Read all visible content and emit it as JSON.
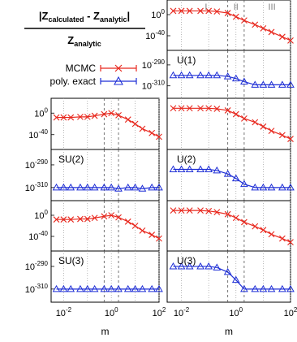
{
  "figure": {
    "formula": {
      "numerator": {
        "z1": "Z",
        "sub1": "calculated",
        "minus": " - ",
        "z2": "Z",
        "sub2": "analytic"
      },
      "denominator": {
        "z": "Z",
        "sub": "analytic"
      }
    },
    "xlabel": "m",
    "x_ticks": [
      "10",
      "10",
      "10",
      "10",
      "10"
    ],
    "x_tick_exps": [
      "-2",
      "-1",
      "0",
      "1",
      "2"
    ],
    "regions": [
      "I",
      "II",
      "III"
    ],
    "colors": {
      "mcmc": "#e8281e",
      "poly": "#1f2fd6",
      "grid": "#9a9a9a",
      "ink": "#000000",
      "region": "#808080"
    }
  },
  "chart_data": [
    {
      "type": "line",
      "panel": "U(1)",
      "label": "U(1)",
      "x_scale": "log",
      "xlim": [
        0.003,
        100
      ],
      "upper": {
        "y_scale": "log",
        "ylim_exp": [
          -60,
          20
        ],
        "y_ticks": [
          {
            "base": "10",
            "exp": "0"
          },
          {
            "base": "10",
            "exp": "-40"
          }
        ],
        "series": [
          {
            "name": "MCMC",
            "x": [
              0.005,
              0.01,
              0.02,
              0.05,
              0.1,
              0.2,
              0.5,
              1,
              2,
              5,
              10,
              20,
              50,
              100
            ],
            "y_exp": [
              7,
              7,
              7,
              7,
              7,
              6,
              3,
              -4,
              -11,
              -19,
              -26,
              -33,
              -42,
              -49
            ]
          }
        ]
      },
      "lower": {
        "y_scale": "log",
        "ylim_exp": [
          -318,
          -280
        ],
        "y_ticks": [
          {
            "base": "10",
            "exp": "-290"
          },
          {
            "base": "10",
            "exp": "-310"
          }
        ],
        "series": [
          {
            "name": "poly. exact",
            "x": [
              0.005,
              0.01,
              0.02,
              0.05,
              0.1,
              0.2,
              0.5,
              1,
              2,
              5,
              10,
              20,
              50,
              100
            ],
            "y_exp": [
              -300,
              -300,
              -300,
              -300,
              -300,
              -300,
              -301,
              -303,
              -306,
              -309,
              -309,
              -309,
              -309,
              -309
            ]
          }
        ]
      }
    },
    {
      "type": "line",
      "panel": "SU(2)",
      "label": "SU(2)",
      "x_scale": "log",
      "xlim": [
        0.003,
        100
      ],
      "upper": {
        "y_scale": "log",
        "ylim_exp": [
          -60,
          20
        ],
        "y_ticks": [
          {
            "base": "10",
            "exp": "0"
          },
          {
            "base": "10",
            "exp": "-40"
          }
        ],
        "series": [
          {
            "name": "MCMC",
            "x": [
              0.005,
              0.01,
              0.02,
              0.05,
              0.1,
              0.2,
              0.5,
              1,
              2,
              5,
              10,
              20,
              50,
              100
            ],
            "y_exp": [
              -8,
              -8,
              -8,
              -7,
              -7,
              -5,
              -2,
              0,
              -4,
              -12,
              -20,
              -29,
              -37,
              -44
            ]
          }
        ]
      },
      "lower": {
        "y_scale": "log",
        "ylim_exp": [
          -318,
          -280
        ],
        "y_ticks": [
          {
            "base": "10",
            "exp": "-290"
          },
          {
            "base": "10",
            "exp": "-310"
          }
        ],
        "series": [
          {
            "name": "poly. exact",
            "x": [
              0.005,
              0.01,
              0.02,
              0.05,
              0.1,
              0.2,
              0.5,
              1,
              2,
              5,
              10,
              20,
              50,
              100
            ],
            "y_exp": [
              -310,
              -310,
              -310,
              -310,
              -310,
              -310,
              -310,
              -310,
              -311,
              -310,
              -310,
              -311,
              -310,
              -310
            ]
          }
        ]
      }
    },
    {
      "type": "line",
      "panel": "U(2)",
      "label": "U(2)",
      "x_scale": "log",
      "xlim": [
        0.003,
        100
      ],
      "upper": {
        "y_scale": "log",
        "ylim_exp": [
          -60,
          20
        ],
        "y_ticks": [],
        "series": [
          {
            "name": "MCMC",
            "x": [
              0.005,
              0.01,
              0.02,
              0.05,
              0.1,
              0.2,
              0.5,
              1,
              2,
              5,
              10,
              20,
              50,
              100
            ],
            "y_exp": [
              9,
              9,
              9,
              9,
              9,
              8,
              5,
              -2,
              -10,
              -17,
              -25,
              -33,
              -41,
              -48
            ]
          }
        ]
      },
      "lower": {
        "y_scale": "log",
        "ylim_exp": [
          -318,
          -280
        ],
        "y_ticks": [],
        "series": [
          {
            "name": "poly. exact",
            "x": [
              0.005,
              0.01,
              0.02,
              0.05,
              0.1,
              0.2,
              0.5,
              1,
              2,
              5,
              10,
              20,
              50,
              100
            ],
            "y_exp": [
              -294,
              -294,
              -294,
              -294,
              -294,
              -295,
              -298,
              -302,
              -307,
              -310,
              -310,
              -310,
              -310,
              -310
            ]
          }
        ]
      }
    },
    {
      "type": "line",
      "panel": "SU(3)",
      "label": "SU(3)",
      "x_scale": "log",
      "xlim": [
        0.003,
        100
      ],
      "upper": {
        "y_scale": "log",
        "ylim_exp": [
          -60,
          20
        ],
        "y_ticks": [
          {
            "base": "10",
            "exp": "0"
          },
          {
            "base": "10",
            "exp": "-40"
          }
        ],
        "series": [
          {
            "name": "MCMC",
            "x": [
              0.005,
              0.01,
              0.02,
              0.05,
              0.1,
              0.2,
              0.5,
              1,
              2,
              5,
              10,
              20,
              50,
              100
            ],
            "y_exp": [
              -8,
              -8,
              -8,
              -7,
              -7,
              -5,
              -2,
              0,
              -4,
              -12,
              -20,
              -29,
              -37,
              -44
            ]
          }
        ]
      },
      "lower": {
        "y_scale": "log",
        "ylim_exp": [
          -318,
          -280
        ],
        "y_ticks": [
          {
            "base": "10",
            "exp": "-290"
          },
          {
            "base": "10",
            "exp": "-310"
          }
        ],
        "series": [
          {
            "name": "poly. exact",
            "x": [
              0.005,
              0.01,
              0.02,
              0.05,
              0.1,
              0.2,
              0.5,
              1,
              2,
              5,
              10,
              20,
              50,
              100
            ],
            "y_exp": [
              -310,
              -310,
              -310,
              -310,
              -310,
              -310,
              -310,
              -310,
              -310,
              -310,
              -310,
              -310,
              -310,
              -310
            ]
          }
        ]
      }
    },
    {
      "type": "line",
      "panel": "U(3)",
      "label": "U(3)",
      "x_scale": "log",
      "xlim": [
        0.003,
        100
      ],
      "upper": {
        "y_scale": "log",
        "ylim_exp": [
          -60,
          20
        ],
        "y_ticks": [],
        "series": [
          {
            "name": "MCMC",
            "x": [
              0.005,
              0.01,
              0.02,
              0.05,
              0.1,
              0.2,
              0.5,
              1,
              2,
              5,
              10,
              20,
              50,
              100
            ],
            "y_exp": [
              9,
              9,
              9,
              9,
              8,
              6,
              2,
              -5,
              -13,
              -21,
              -28,
              -36,
              -44,
              -51
            ]
          }
        ]
      },
      "lower": {
        "y_scale": "log",
        "ylim_exp": [
          -318,
          -280
        ],
        "y_ticks": [],
        "series": [
          {
            "name": "poly. exact",
            "x": [
              0.005,
              0.01,
              0.02,
              0.05,
              0.1,
              0.2,
              0.5,
              1,
              2,
              5,
              10,
              20,
              50,
              100
            ],
            "y_exp": [
              -290,
              -290,
              -290,
              -290,
              -290,
              -291,
              -295,
              -302,
              -310,
              -310,
              -310,
              -310,
              -310,
              -310
            ]
          }
        ]
      }
    }
  ],
  "legend": [
    {
      "label": "MCMC",
      "marker": "x",
      "color": "#e8281e"
    },
    {
      "label": "poly. exact",
      "marker": "triangle",
      "color": "#1f2fd6"
    }
  ]
}
